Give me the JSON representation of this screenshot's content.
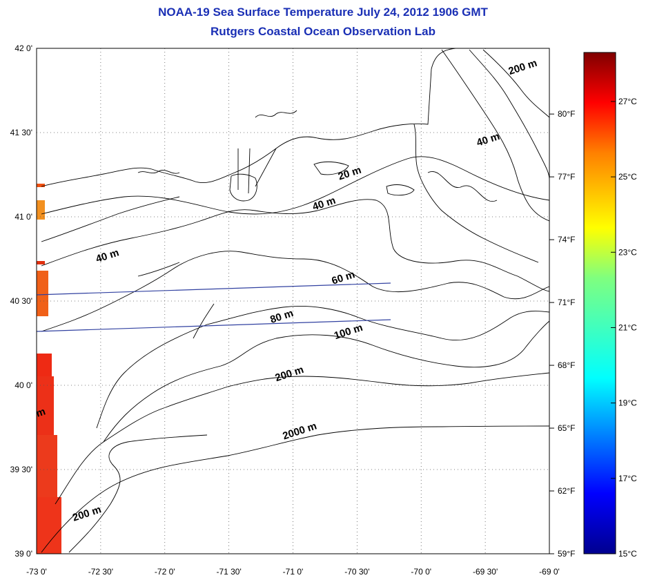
{
  "header": {
    "title": "NOAA-19 Sea Surface Temperature July 24, 2012 1906 GMT",
    "subtitle": "Rutgers Coastal Ocean Observation Lab"
  },
  "map": {
    "lon_labels": [
      "-73 0'",
      "-72 30'",
      "-72 0'",
      "-71 30'",
      "-71 0'",
      "-70 30'",
      "-70 0'",
      "-69 30'",
      "-69 0'"
    ],
    "lat_labels": [
      "42 0'",
      "41 30'",
      "41 0'",
      "40 30'",
      "40 0'",
      "39 30'",
      "39 0'"
    ],
    "lon_range": [
      -73.0,
      -69.0
    ],
    "lat_range": [
      39.0,
      42.0
    ],
    "grid": "dotted",
    "contour_labels": [
      {
        "text": "200 m",
        "lon": -69.2,
        "lat": 41.87
      },
      {
        "text": "40 m",
        "lon": -69.47,
        "lat": 41.44
      },
      {
        "text": "20 m",
        "lon": -70.55,
        "lat": 41.24
      },
      {
        "text": "40 m",
        "lon": -70.75,
        "lat": 41.06
      },
      {
        "text": "40 m",
        "lon": -72.44,
        "lat": 40.75
      },
      {
        "text": "60 m",
        "lon": -70.6,
        "lat": 40.62
      },
      {
        "text": "80 m",
        "lon": -71.08,
        "lat": 40.39
      },
      {
        "text": "100 m",
        "lon": -70.56,
        "lat": 40.3
      },
      {
        "text": "200 m",
        "lon": -71.02,
        "lat": 40.05
      },
      {
        "text": "2000 m",
        "lon": -70.94,
        "lat": 39.71
      },
      {
        "text": "200 m",
        "lon": -72.6,
        "lat": 39.22
      },
      {
        "text": "m",
        "lon": -72.96,
        "lat": 39.82
      }
    ]
  },
  "colorbar": {
    "celsius_labels": [
      "27°C",
      "25°C",
      "23°C",
      "21°C",
      "19°C",
      "17°C",
      "15°C"
    ],
    "fahrenheit_labels": [
      "80°F",
      "77°F",
      "74°F",
      "71°F",
      "68°F",
      "65°F",
      "62°F",
      "59°F"
    ],
    "min_c": 15,
    "max_c": 28.3
  },
  "sst_patches_c": [
    27.0,
    26.2,
    26.5,
    27.0,
    27.5
  ]
}
